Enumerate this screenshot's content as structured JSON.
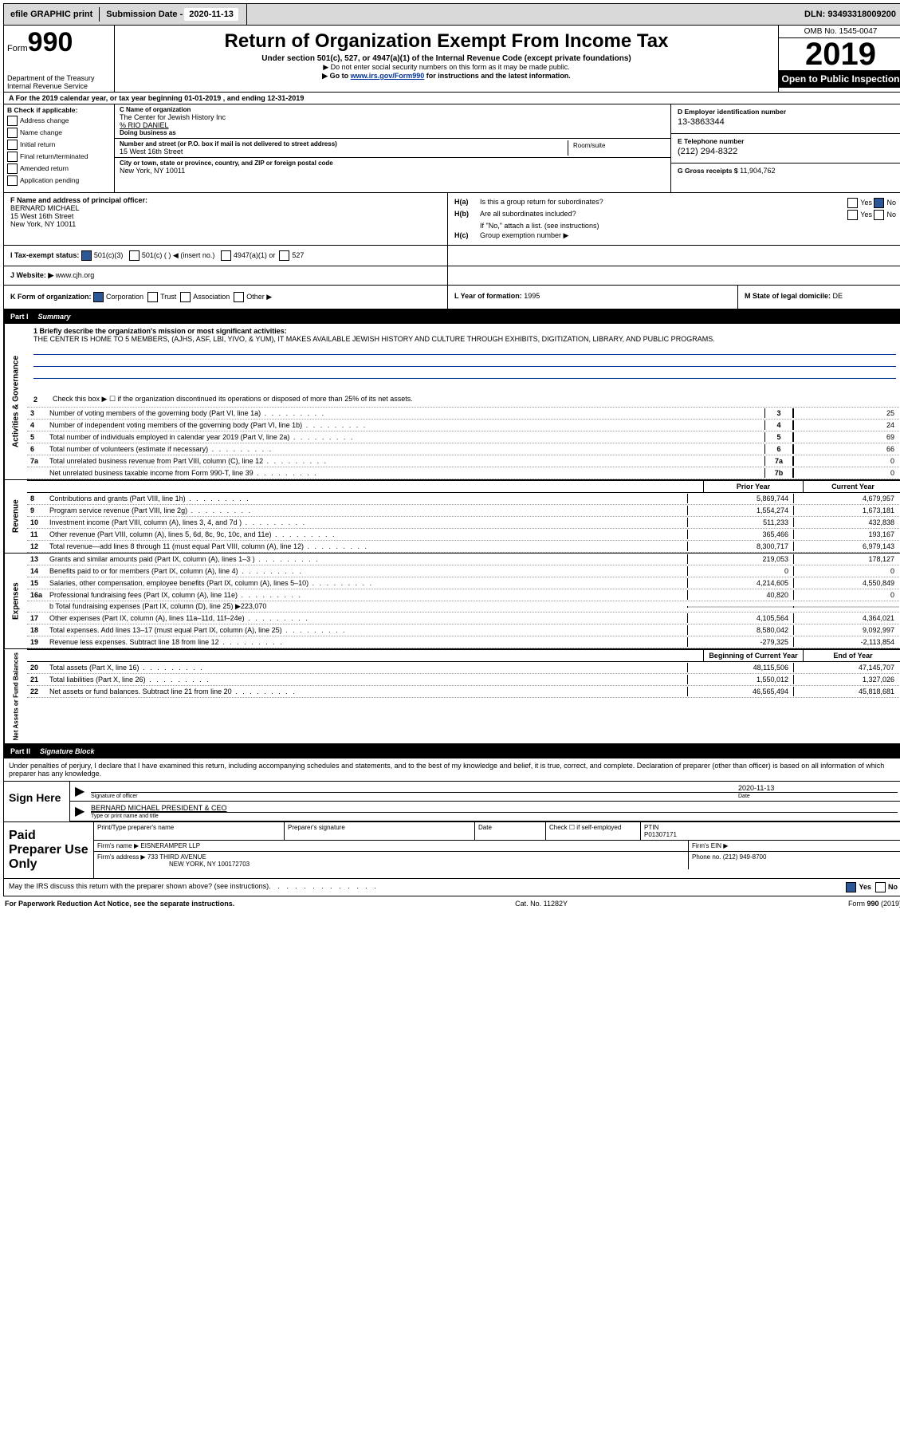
{
  "topbar": {
    "efile": "efile GRAPHIC print",
    "subdate_label": "Submission Date -",
    "subdate": "2020-11-13",
    "dln": "DLN: 93493318009200"
  },
  "header": {
    "form_prefix": "Form",
    "form_num": "990",
    "dept": "Department of the Treasury\nInternal Revenue Service",
    "title": "Return of Organization Exempt From Income Tax",
    "sub1": "Under section 501(c), 527, or 4947(a)(1) of the Internal Revenue Code (except private foundations)",
    "sub2": "▶ Do not enter social security numbers on this form as it may be made public.",
    "sub3_pre": "▶ Go to ",
    "sub3_link": "www.irs.gov/Form990",
    "sub3_post": " for instructions and the latest information.",
    "omb": "OMB No. 1545-0047",
    "year": "2019",
    "open": "Open to Public Inspection"
  },
  "period": {
    "text": "A For the 2019 calendar year, or tax year beginning 01-01-2019   , and ending 12-31-2019"
  },
  "boxB": {
    "label": "B Check if applicable:",
    "items": [
      "Address change",
      "Name change",
      "Initial return",
      "Final return/terminated",
      "Amended return",
      "Application pending"
    ]
  },
  "boxC": {
    "name_label": "C Name of organization",
    "name": "The Center for Jewish History Inc",
    "care": "% RIO DANIEL",
    "dba_label": "Doing business as",
    "addr_label": "Number and street (or P.O. box if mail is not delivered to street address)",
    "addr": "15 West 16th Street",
    "suite_label": "Room/suite",
    "city_label": "City or town, state or province, country, and ZIP or foreign postal code",
    "city": "New York, NY  10011"
  },
  "boxD": {
    "label": "D Employer identification number",
    "val": "13-3863344"
  },
  "boxE": {
    "label": "E Telephone number",
    "val": "(212) 294-8322"
  },
  "boxG": {
    "label": "G Gross receipts $",
    "val": "11,904,762"
  },
  "boxF": {
    "label": "F  Name and address of principal officer:",
    "name": "BERNARD MICHAEL",
    "addr1": "15 West 16th Street",
    "addr2": "New York, NY  10011"
  },
  "boxH": {
    "a_label": "H(a)  Is this a group return for subordinates?",
    "a_no": "No",
    "b_label": "H(b)  Are all subordinates included?",
    "attach": "If \"No,\" attach a list. (see instructions)",
    "c_label": "H(c)  Group exemption number ▶"
  },
  "boxI": {
    "label": "I  Tax-exempt status:",
    "c3": "501(c)(3)",
    "c": "501(c) (  ) ◀ (insert no.)",
    "a1": "4947(a)(1) or",
    "527": "527"
  },
  "boxJ": {
    "label": "J  Website: ▶ ",
    "val": "www.cjh.org"
  },
  "boxK": {
    "label": "K Form of organization:",
    "corp": "Corporation",
    "trust": "Trust",
    "assoc": "Association",
    "other": "Other ▶"
  },
  "boxL": {
    "label": "L Year of formation:",
    "val": "1995"
  },
  "boxM": {
    "label": "M State of legal domicile:",
    "val": "DE"
  },
  "part1": {
    "num": "Part I",
    "title": "Summary"
  },
  "summary": {
    "l1_label": "1  Briefly describe the organization's mission or most significant activities:",
    "l1_text": "THE CENTER IS HOME TO 5 MEMBERS, (AJHS, ASF, LBI, YIVO, & YUM), IT MAKES AVAILABLE JEWISH HISTORY AND CULTURE THROUGH EXHIBITS, DIGITIZATION, LIBRARY, AND PUBLIC PROGRAMS.",
    "l2": "Check this box ▶ ☐  if the organization discontinued its operations or disposed of more than 25% of its net assets.",
    "rows": [
      {
        "n": "3",
        "d": "Number of voting members of the governing body (Part VI, line 1a)",
        "b": "3",
        "v": "25"
      },
      {
        "n": "4",
        "d": "Number of independent voting members of the governing body (Part VI, line 1b)",
        "b": "4",
        "v": "24"
      },
      {
        "n": "5",
        "d": "Total number of individuals employed in calendar year 2019 (Part V, line 2a)",
        "b": "5",
        "v": "69"
      },
      {
        "n": "6",
        "d": "Total number of volunteers (estimate if necessary)",
        "b": "6",
        "v": "66"
      },
      {
        "n": "7a",
        "d": "Total unrelated business revenue from Part VIII, column (C), line 12",
        "b": "7a",
        "v": "0"
      },
      {
        "n": "",
        "d": "Net unrelated business taxable income from Form 990-T, line 39",
        "b": "7b",
        "v": "0"
      }
    ]
  },
  "rev": {
    "hdr_prior": "Prior Year",
    "hdr_curr": "Current Year",
    "rows": [
      {
        "n": "8",
        "d": "Contributions and grants (Part VIII, line 1h)",
        "p": "5,869,744",
        "c": "4,679,957"
      },
      {
        "n": "9",
        "d": "Program service revenue (Part VIII, line 2g)",
        "p": "1,554,274",
        "c": "1,673,181"
      },
      {
        "n": "10",
        "d": "Investment income (Part VIII, column (A), lines 3, 4, and 7d )",
        "p": "511,233",
        "c": "432,838"
      },
      {
        "n": "11",
        "d": "Other revenue (Part VIII, column (A), lines 5, 6d, 8c, 9c, 10c, and 11e)",
        "p": "365,466",
        "c": "193,167"
      },
      {
        "n": "12",
        "d": "Total revenue—add lines 8 through 11 (must equal Part VIII, column (A), line 12)",
        "p": "8,300,717",
        "c": "6,979,143"
      }
    ]
  },
  "exp": {
    "rows": [
      {
        "n": "13",
        "d": "Grants and similar amounts paid (Part IX, column (A), lines 1–3 )",
        "p": "219,053",
        "c": "178,127"
      },
      {
        "n": "14",
        "d": "Benefits paid to or for members (Part IX, column (A), line 4)",
        "p": "0",
        "c": "0"
      },
      {
        "n": "15",
        "d": "Salaries, other compensation, employee benefits (Part IX, column (A), lines 5–10)",
        "p": "4,214,605",
        "c": "4,550,849"
      },
      {
        "n": "16a",
        "d": "Professional fundraising fees (Part IX, column (A), line 11e)",
        "p": "40,820",
        "c": "0"
      }
    ],
    "l16b": "b  Total fundraising expenses (Part IX, column (D), line 25) ▶223,070",
    "rows2": [
      {
        "n": "17",
        "d": "Other expenses (Part IX, column (A), lines 11a–11d, 11f–24e)",
        "p": "4,105,564",
        "c": "4,364,021"
      },
      {
        "n": "18",
        "d": "Total expenses. Add lines 13–17 (must equal Part IX, column (A), line 25)",
        "p": "8,580,042",
        "c": "9,092,997"
      },
      {
        "n": "19",
        "d": "Revenue less expenses. Subtract line 18 from line 12",
        "p": "-279,325",
        "c": "-2,113,854"
      }
    ]
  },
  "net": {
    "hdr_beg": "Beginning of Current Year",
    "hdr_end": "End of Year",
    "rows": [
      {
        "n": "20",
        "d": "Total assets (Part X, line 16)",
        "p": "48,115,506",
        "c": "47,145,707"
      },
      {
        "n": "21",
        "d": "Total liabilities (Part X, line 26)",
        "p": "1,550,012",
        "c": "1,327,026"
      },
      {
        "n": "22",
        "d": "Net assets or fund balances. Subtract line 21 from line 20",
        "p": "46,565,494",
        "c": "45,818,681"
      }
    ]
  },
  "part2": {
    "num": "Part II",
    "title": "Signature Block"
  },
  "sig": {
    "intro": "Under penalties of perjury, I declare that I have examined this return, including accompanying schedules and statements, and to the best of my knowledge and belief, it is true, correct, and complete. Declaration of preparer (other than officer) is based on all information of which preparer has any knowledge.",
    "here": "Sign Here",
    "sig_label": "Signature of officer",
    "date_label": "Date",
    "date": "2020-11-13",
    "name": "BERNARD MICHAEL  PRESIDENT & CEO",
    "name_label": "Type or print name and title"
  },
  "paid": {
    "label": "Paid Preparer Use Only",
    "h_name": "Print/Type preparer's name",
    "h_sig": "Preparer's signature",
    "h_date": "Date",
    "h_check": "Check ☐ if self-employed",
    "h_ptin": "PTIN",
    "ptin": "P01307171",
    "firm_label": "Firm's name   ▶",
    "firm": "EISNERAMPER LLP",
    "ein_label": "Firm's EIN ▶",
    "addr_label": "Firm's address ▶",
    "addr1": "733 THIRD AVENUE",
    "addr2": "NEW YORK, NY  100172703",
    "phone_label": "Phone no.",
    "phone": "(212) 949-8700"
  },
  "footer": {
    "q": "May the IRS discuss this return with the preparer shown above? (see instructions)",
    "yes": "Yes",
    "no": "No"
  },
  "bottom": {
    "l": "For Paperwork Reduction Act Notice, see the separate instructions.",
    "m": "Cat. No. 11282Y",
    "r": "Form 990 (2019)"
  },
  "vlabels": {
    "ag": "Activities & Governance",
    "rev": "Revenue",
    "exp": "Expenses",
    "net": "Net Assets or Fund Balances"
  }
}
